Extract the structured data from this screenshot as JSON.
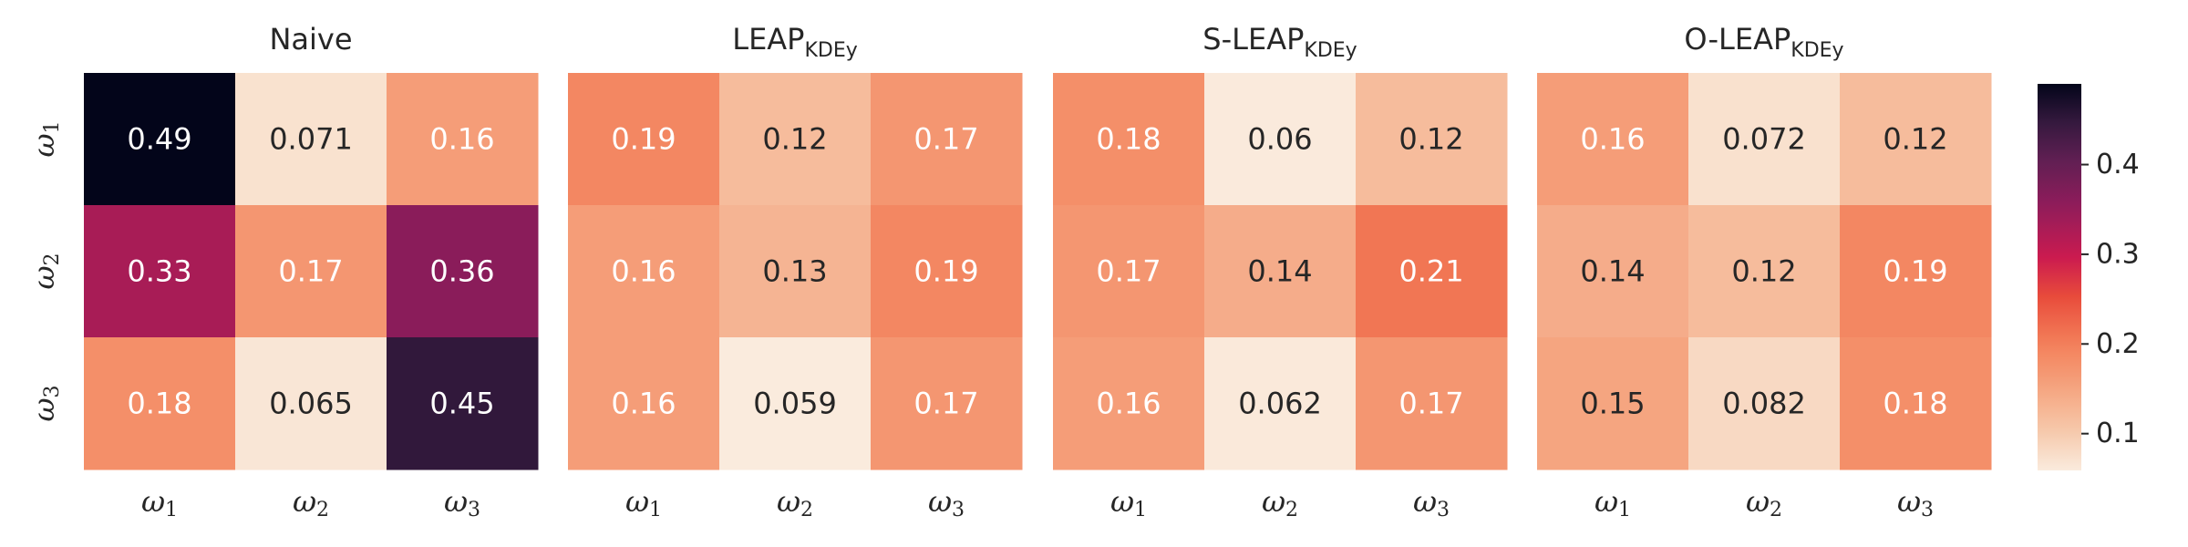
{
  "chart_data": {
    "type": "heatmap",
    "row_labels": [
      {
        "base": "ω",
        "sub": "1"
      },
      {
        "base": "ω",
        "sub": "2"
      },
      {
        "base": "ω",
        "sub": "3"
      }
    ],
    "col_labels": [
      {
        "base": "ω",
        "sub": "1"
      },
      {
        "base": "ω",
        "sub": "2"
      },
      {
        "base": "ω",
        "sub": "3"
      }
    ],
    "panels": [
      {
        "title": "Naive",
        "title_sub": "",
        "values": [
          [
            0.49,
            0.071,
            0.16
          ],
          [
            0.33,
            0.17,
            0.36
          ],
          [
            0.18,
            0.065,
            0.45
          ]
        ],
        "labels": [
          [
            "0.49",
            "0.071",
            "0.16"
          ],
          [
            "0.33",
            "0.17",
            "0.36"
          ],
          [
            "0.18",
            "0.065",
            "0.45"
          ]
        ]
      },
      {
        "title": "LEAP",
        "title_sub": "KDEy",
        "values": [
          [
            0.19,
            0.12,
            0.17
          ],
          [
            0.16,
            0.13,
            0.19
          ],
          [
            0.16,
            0.059,
            0.17
          ]
        ],
        "labels": [
          [
            "0.19",
            "0.12",
            "0.17"
          ],
          [
            "0.16",
            "0.13",
            "0.19"
          ],
          [
            "0.16",
            "0.059",
            "0.17"
          ]
        ]
      },
      {
        "title": "S-LEAP",
        "title_sub": "KDEy",
        "values": [
          [
            0.18,
            0.06,
            0.12
          ],
          [
            0.17,
            0.14,
            0.21
          ],
          [
            0.16,
            0.062,
            0.17
          ]
        ],
        "labels": [
          [
            "0.18",
            "0.06",
            "0.12"
          ],
          [
            "0.17",
            "0.14",
            "0.21"
          ],
          [
            "0.16",
            "0.062",
            "0.17"
          ]
        ]
      },
      {
        "title": "O-LEAP",
        "title_sub": "KDEy",
        "values": [
          [
            0.16,
            0.072,
            0.12
          ],
          [
            0.14,
            0.12,
            0.19
          ],
          [
            0.15,
            0.082,
            0.18
          ]
        ],
        "labels": [
          [
            "0.16",
            "0.072",
            "0.12"
          ],
          [
            "0.14",
            "0.12",
            "0.19"
          ],
          [
            "0.15",
            "0.082",
            "0.18"
          ]
        ]
      }
    ],
    "colormap": "rocket_r",
    "vmin": 0.059,
    "vmax": 0.49,
    "colorbar": {
      "ticks": [
        0.1,
        0.2,
        0.3,
        0.4
      ],
      "tick_labels": [
        "0.1",
        "0.2",
        "0.3",
        "0.4"
      ],
      "position": "right"
    },
    "grid": false
  }
}
